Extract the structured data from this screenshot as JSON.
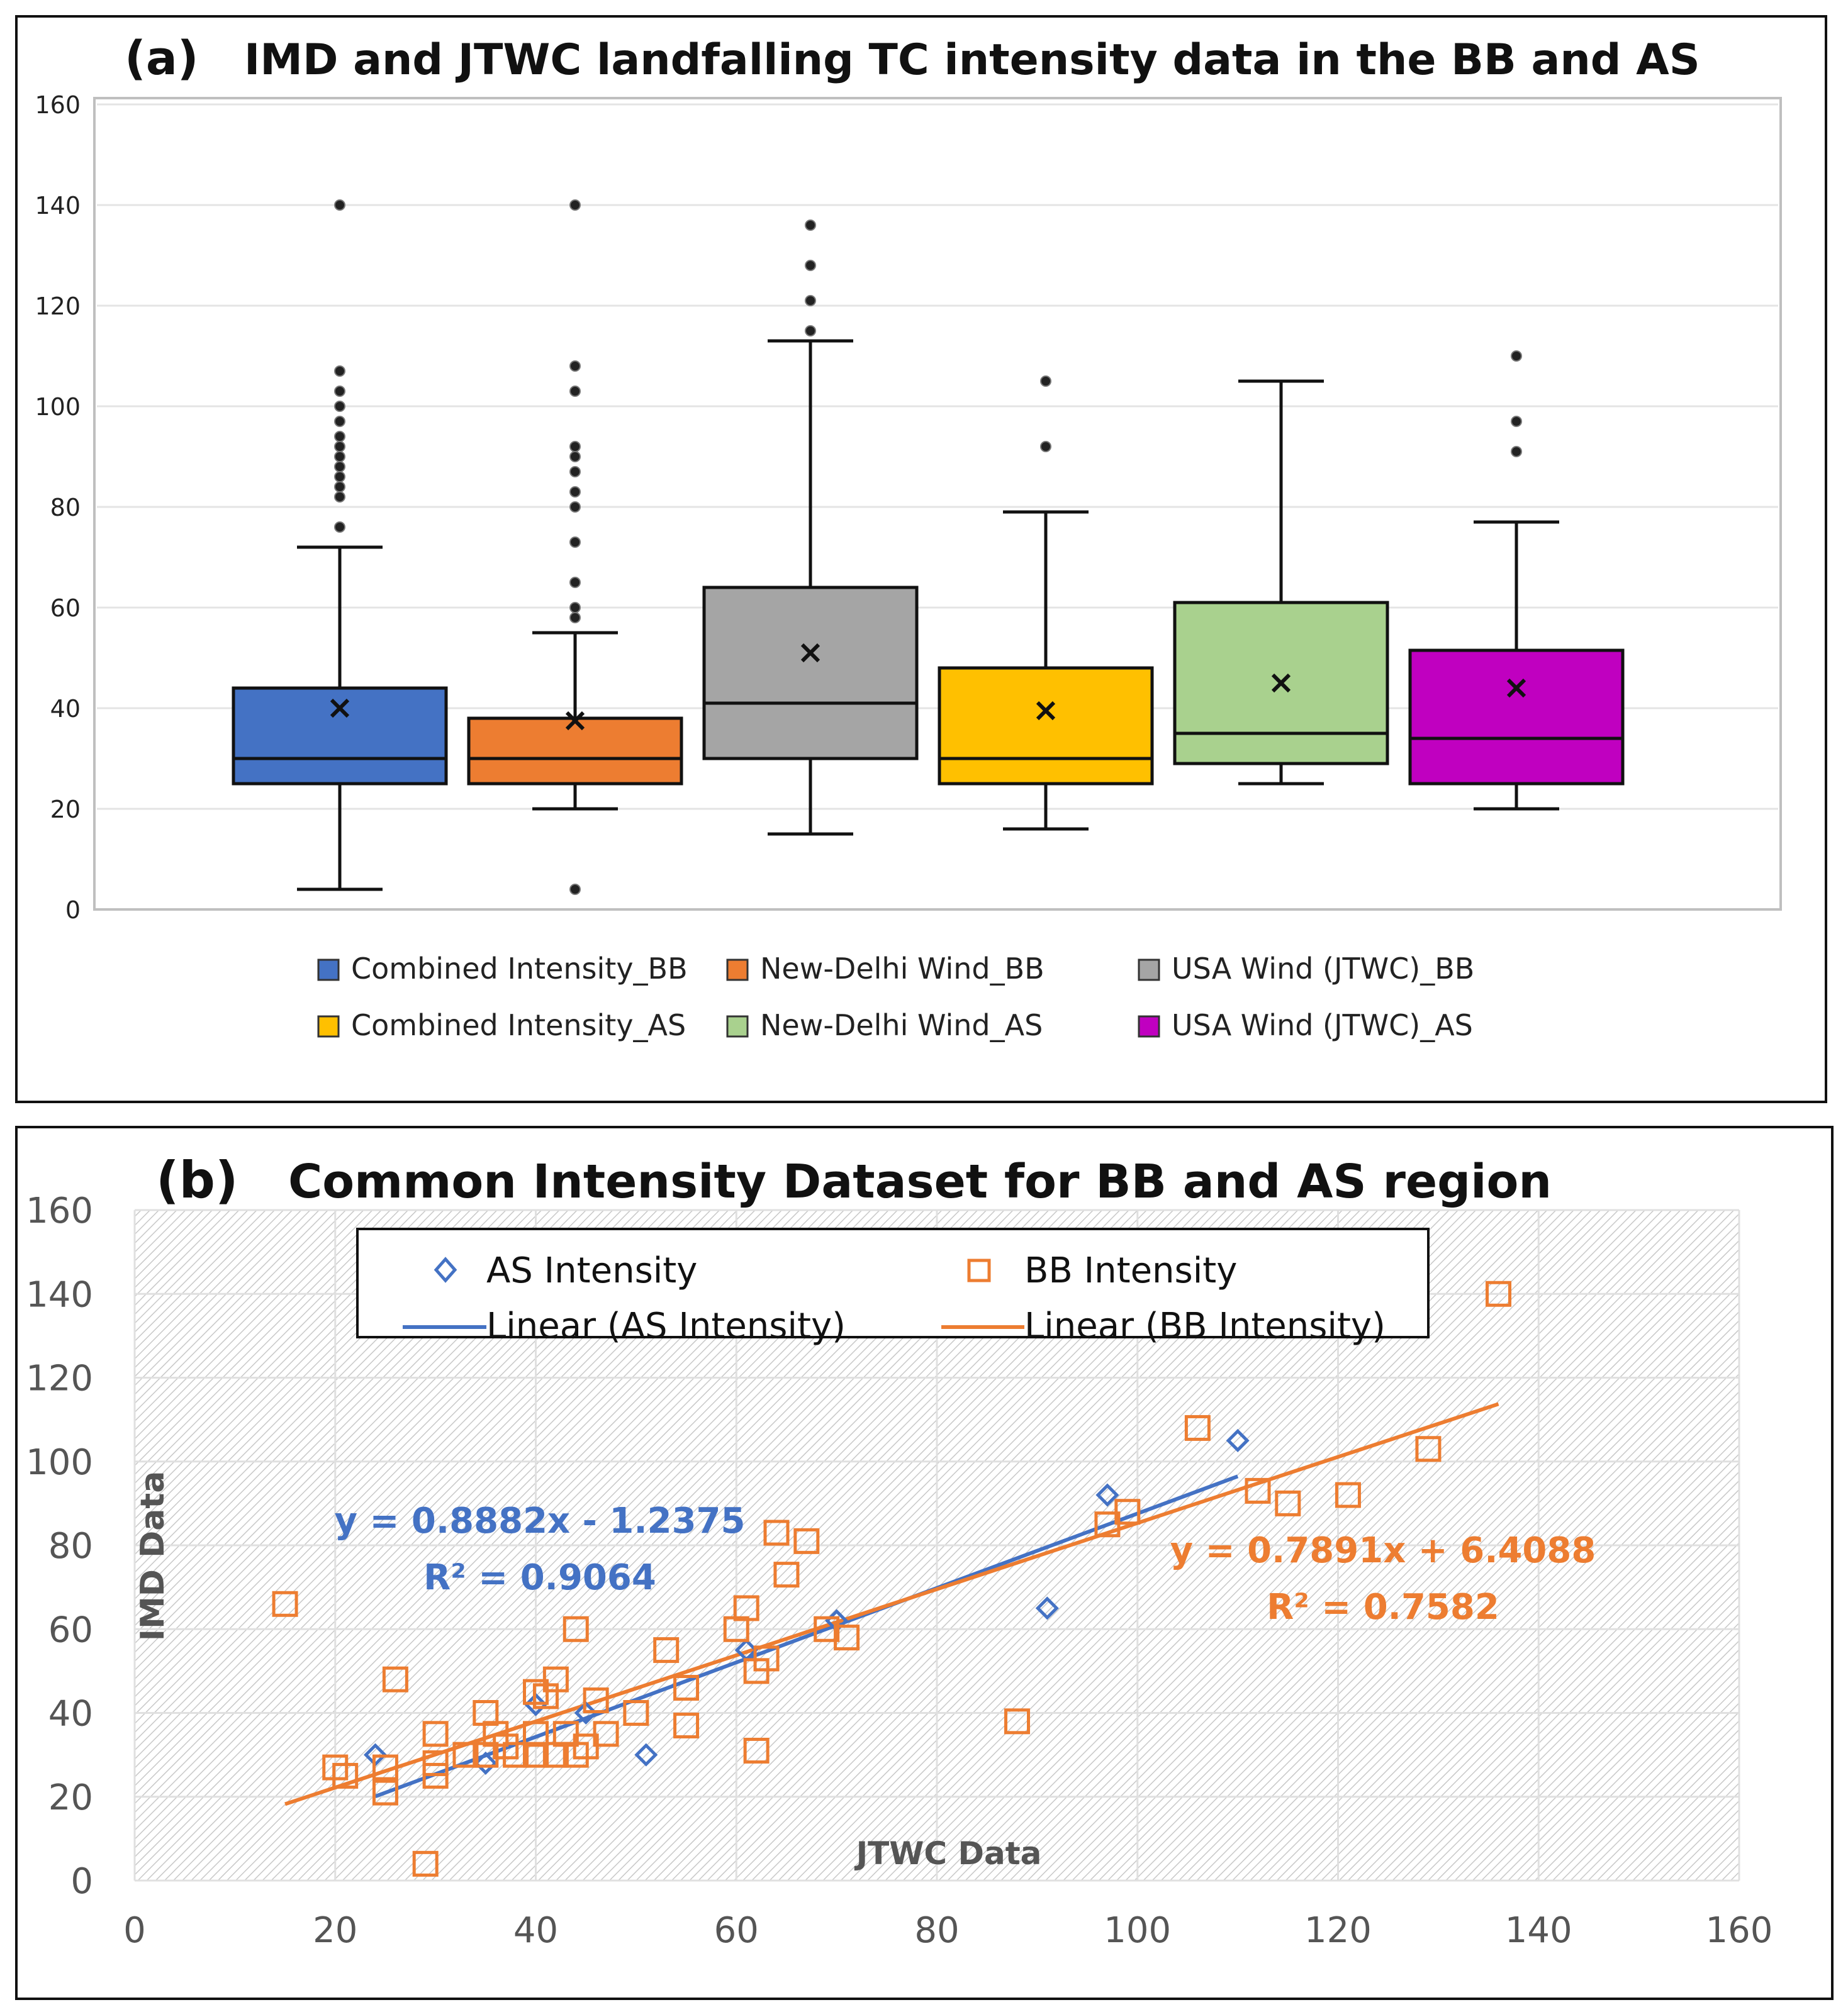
{
  "chart_data": [
    {
      "type": "box",
      "panel_label": "(a)",
      "title": "IMD and JTWC landfalling TC intensity data in the BB and AS",
      "ylim": [
        0,
        160
      ],
      "yticks": [
        0,
        20,
        40,
        60,
        80,
        100,
        120,
        140,
        160
      ],
      "series": [
        {
          "name": "Combined Intensity_BB",
          "color": "#4472C4",
          "whisker_low": 4,
          "q1": 25,
          "median": 30,
          "q3": 44,
          "whisker_high": 72,
          "mean": 40,
          "outliers": [
            76,
            82,
            84,
            86,
            88,
            90,
            92,
            94,
            97,
            100,
            103,
            107,
            140
          ]
        },
        {
          "name": "New-Delhi Wind_BB",
          "color": "#ED7D31",
          "whisker_low": 20,
          "q1": 25,
          "median": 30,
          "q3": 38,
          "whisker_high": 55,
          "mean": 37.5,
          "outliers": [
            4,
            58,
            60,
            65,
            73,
            80,
            83,
            87,
            90,
            92,
            103,
            108,
            140
          ]
        },
        {
          "name": "USA Wind (JTWC)_BB",
          "color": "#A5A5A5",
          "whisker_low": 15,
          "q1": 30,
          "median": 41,
          "q3": 64,
          "whisker_high": 113,
          "mean": 51,
          "outliers": [
            115,
            121,
            128,
            136
          ]
        },
        {
          "name": "Combined Intensity_AS",
          "color": "#FFC000",
          "whisker_low": 16,
          "q1": 25,
          "median": 30,
          "q3": 48,
          "whisker_high": 79,
          "mean": 39.5,
          "outliers": [
            92,
            105
          ]
        },
        {
          "name": "New-Delhi Wind_AS",
          "color": "#A9D18E",
          "whisker_low": 25,
          "q1": 29,
          "median": 35,
          "q3": 61,
          "whisker_high": 105,
          "mean": 45,
          "outliers": []
        },
        {
          "name": "USA Wind (JTWC)_AS",
          "color": "#C000C0",
          "whisker_low": 20,
          "q1": 25,
          "median": 34,
          "q3": 51.5,
          "whisker_high": 77,
          "mean": 44,
          "outliers": [
            91,
            97,
            110
          ]
        }
      ]
    },
    {
      "type": "scatter",
      "panel_label": "(b)",
      "title": "Common Intensity Dataset for BB and AS region",
      "xlabel": "JTWC Data",
      "ylabel": "IMD Data",
      "xlim": [
        0,
        160
      ],
      "ylim": [
        0,
        160
      ],
      "xticks": [
        0,
        20,
        40,
        60,
        80,
        100,
        120,
        140,
        160
      ],
      "yticks": [
        0,
        20,
        40,
        60,
        80,
        100,
        120,
        140,
        160
      ],
      "legend": {
        "as_points": "AS Intensity",
        "bb_points": "BB Intensity",
        "as_line": "Linear (AS Intensity)",
        "bb_line": "Linear (BB Intensity)"
      },
      "series": [
        {
          "name": "AS Intensity",
          "marker": "diamond",
          "color": "#4472C4",
          "points": [
            [
              24,
              30
            ],
            [
              35,
              28
            ],
            [
              40,
              42
            ],
            [
              45,
              40
            ],
            [
              51,
              30
            ],
            [
              61,
              55
            ],
            [
              70,
              62
            ],
            [
              91,
              65
            ],
            [
              97,
              92
            ],
            [
              110,
              105
            ]
          ],
          "trendline": {
            "slope": 0.8882,
            "intercept": -1.2375,
            "x_range": [
              24,
              110
            ],
            "equation": "y = 0.8882x - 1.2375",
            "r2": "R² = 0.9064",
            "color": "#4472C4"
          }
        },
        {
          "name": "BB Intensity",
          "marker": "square",
          "color": "#ED7D31",
          "points": [
            [
              15,
              66
            ],
            [
              20,
              27
            ],
            [
              21,
              25
            ],
            [
              25,
              21
            ],
            [
              25,
              27
            ],
            [
              26,
              48
            ],
            [
              29,
              4
            ],
            [
              30,
              35
            ],
            [
              30,
              25
            ],
            [
              30,
              28
            ],
            [
              33,
              30
            ],
            [
              35,
              30
            ],
            [
              35,
              40
            ],
            [
              36,
              35
            ],
            [
              37,
              32
            ],
            [
              38,
              30
            ],
            [
              40,
              45
            ],
            [
              40,
              30
            ],
            [
              40,
              35
            ],
            [
              41,
              44
            ],
            [
              42,
              30
            ],
            [
              42,
              48
            ],
            [
              43,
              35
            ],
            [
              44,
              30
            ],
            [
              44,
              60
            ],
            [
              45,
              32
            ],
            [
              46,
              43
            ],
            [
              47,
              35
            ],
            [
              50,
              40
            ],
            [
              53,
              55
            ],
            [
              55,
              37
            ],
            [
              55,
              46
            ],
            [
              60,
              60
            ],
            [
              61,
              65
            ],
            [
              62,
              50
            ],
            [
              62,
              31
            ],
            [
              63,
              53
            ],
            [
              64,
              83
            ],
            [
              65,
              73
            ],
            [
              67,
              81
            ],
            [
              69,
              60
            ],
            [
              71,
              58
            ],
            [
              88,
              38
            ],
            [
              97,
              85
            ],
            [
              99,
              88
            ],
            [
              106,
              108
            ],
            [
              112,
              93
            ],
            [
              115,
              90
            ],
            [
              121,
              92
            ],
            [
              129,
              103
            ],
            [
              136,
              140
            ]
          ],
          "trendline": {
            "slope": 0.7891,
            "intercept": 6.4088,
            "x_range": [
              15,
              136
            ],
            "equation": "y = 0.7891x + 6.4088",
            "r2": "R² = 0.7582",
            "color": "#ED7D31"
          }
        }
      ]
    }
  ]
}
